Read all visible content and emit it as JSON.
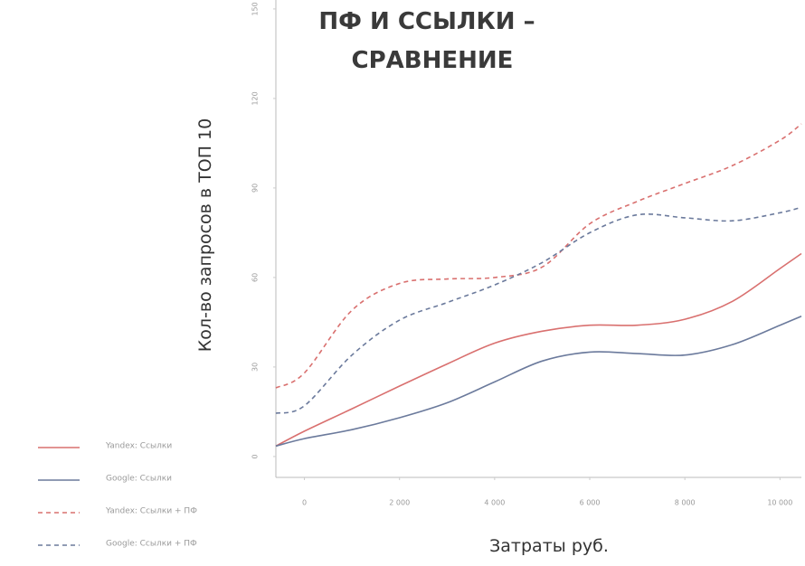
{
  "chart_data": {
    "type": "line",
    "title": [
      "ПФ И ССЫЛКИ –",
      "СРАВНЕНИЕ"
    ],
    "x_label": "Затраты руб.",
    "y_label": "Кол-во запросов в ТОП 10",
    "x": [
      -600,
      0,
      1000,
      2000,
      3000,
      4000,
      5000,
      6000,
      7000,
      8000,
      9000,
      10000,
      10450
    ],
    "series": [
      {
        "name": "Yandex: Ссылки",
        "color": "#d9706f",
        "dashed": false,
        "values": [
          3.5,
          8.5,
          16,
          23.6,
          31,
          38,
          42,
          44,
          44,
          46,
          52,
          63,
          68
        ]
      },
      {
        "name": "Google: Ссылки",
        "color": "#6b7a9c",
        "dashed": false,
        "values": [
          3.5,
          6,
          9,
          13,
          18,
          25,
          32,
          35,
          34.5,
          34,
          37.5,
          44,
          47
        ]
      },
      {
        "name": "Yandex: Ссылки + ПФ",
        "color": "#d9706f",
        "dashed": true,
        "values": [
          23,
          28,
          49,
          58,
          59.5,
          60,
          63.5,
          78,
          85.5,
          91.5,
          97.5,
          106,
          111.5
        ]
      },
      {
        "name": "Google: Ссылки + ПФ",
        "color": "#6b7a9c",
        "dashed": true,
        "values": [
          14.5,
          17,
          34,
          45.7,
          51.6,
          57.5,
          65,
          75,
          81,
          80,
          79,
          81.7,
          83.5
        ]
      }
    ],
    "xlim": [
      -600,
      10450
    ],
    "ylim": [
      -7,
      153
    ],
    "xticks": [
      0,
      {
        "value": 2000,
        "label": "2 000"
      },
      {
        "value": 4000,
        "label": "4 000"
      },
      {
        "value": 6000,
        "label": "6 000"
      },
      {
        "value": 8000,
        "label": "8 000"
      },
      {
        "value": 10000,
        "label": "10 000"
      }
    ],
    "yticks": [
      0,
      30,
      60,
      90,
      120,
      150
    ]
  }
}
